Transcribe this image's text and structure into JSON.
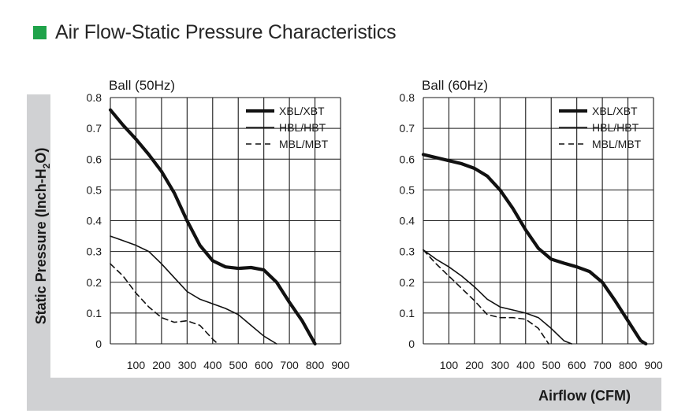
{
  "heading": {
    "title": "Air Flow-Static Pressure Characteristics",
    "marker_color": "#1fa34a"
  },
  "axes": {
    "ylabel": "Static Pressure (Inch-H",
    "ylabel_sub": "2",
    "ylabel_end": "O)",
    "xlabel": "Airflow (CFM)"
  },
  "chart_data": [
    {
      "type": "line",
      "title": "Ball (50Hz)",
      "xlim": [
        0,
        900
      ],
      "ylim": [
        0,
        0.8
      ],
      "x_ticks": [
        "100",
        "200",
        "300",
        "400",
        "500",
        "600",
        "700",
        "800",
        "900"
      ],
      "y_ticks": [
        "0",
        "0.1",
        "0.2",
        "0.3",
        "0.4",
        "0.5",
        "0.6",
        "0.7",
        "0.8"
      ],
      "legend": "top-right",
      "series": [
        {
          "name": "XBL/XBT",
          "style": "thick",
          "x": [
            0,
            50,
            100,
            150,
            200,
            250,
            300,
            350,
            400,
            450,
            500,
            550,
            600,
            650,
            700,
            750,
            800
          ],
          "y": [
            0.76,
            0.71,
            0.665,
            0.615,
            0.56,
            0.49,
            0.4,
            0.32,
            0.27,
            0.25,
            0.245,
            0.248,
            0.24,
            0.2,
            0.135,
            0.075,
            0.0
          ]
        },
        {
          "name": "HBL/HBT",
          "style": "thin",
          "x": [
            0,
            50,
            100,
            150,
            200,
            250,
            300,
            350,
            400,
            450,
            500,
            550,
            600,
            650
          ],
          "y": [
            0.35,
            0.335,
            0.32,
            0.3,
            0.26,
            0.215,
            0.17,
            0.145,
            0.13,
            0.115,
            0.095,
            0.06,
            0.025,
            0.0
          ]
        },
        {
          "name": "MBL/MBT",
          "style": "dashed",
          "x": [
            0,
            50,
            100,
            150,
            200,
            250,
            300,
            350,
            400,
            420
          ],
          "y": [
            0.26,
            0.22,
            0.165,
            0.12,
            0.085,
            0.07,
            0.075,
            0.06,
            0.015,
            0.0
          ]
        }
      ]
    },
    {
      "type": "line",
      "title": "Ball (60Hz)",
      "xlim": [
        0,
        900
      ],
      "ylim": [
        0,
        0.8
      ],
      "x_ticks": [
        "100",
        "200",
        "300",
        "400",
        "500",
        "600",
        "700",
        "800",
        "900"
      ],
      "y_ticks": [
        "0",
        "0.1",
        "0.2",
        "0.3",
        "0.4",
        "0.5",
        "0.6",
        "0.7",
        "0.8"
      ],
      "legend": "top-right",
      "series": [
        {
          "name": "XBL/XBT",
          "style": "thick",
          "x": [
            0,
            50,
            100,
            150,
            200,
            250,
            300,
            350,
            400,
            450,
            500,
            550,
            600,
            650,
            700,
            750,
            800,
            850,
            870
          ],
          "y": [
            0.615,
            0.605,
            0.595,
            0.585,
            0.57,
            0.545,
            0.5,
            0.44,
            0.37,
            0.31,
            0.275,
            0.262,
            0.25,
            0.235,
            0.2,
            0.14,
            0.075,
            0.01,
            0.0
          ]
        },
        {
          "name": "HBL/HBT",
          "style": "thin",
          "x": [
            0,
            50,
            100,
            150,
            200,
            250,
            300,
            350,
            400,
            450,
            500,
            550,
            580
          ],
          "y": [
            0.305,
            0.275,
            0.25,
            0.22,
            0.185,
            0.145,
            0.12,
            0.11,
            0.1,
            0.085,
            0.05,
            0.01,
            0.0
          ]
        },
        {
          "name": "MBL/MBT",
          "style": "dashed",
          "x": [
            0,
            50,
            100,
            150,
            200,
            250,
            300,
            350,
            400,
            450,
            490
          ],
          "y": [
            0.305,
            0.26,
            0.22,
            0.18,
            0.14,
            0.095,
            0.085,
            0.085,
            0.08,
            0.05,
            0.0
          ]
        }
      ]
    }
  ]
}
